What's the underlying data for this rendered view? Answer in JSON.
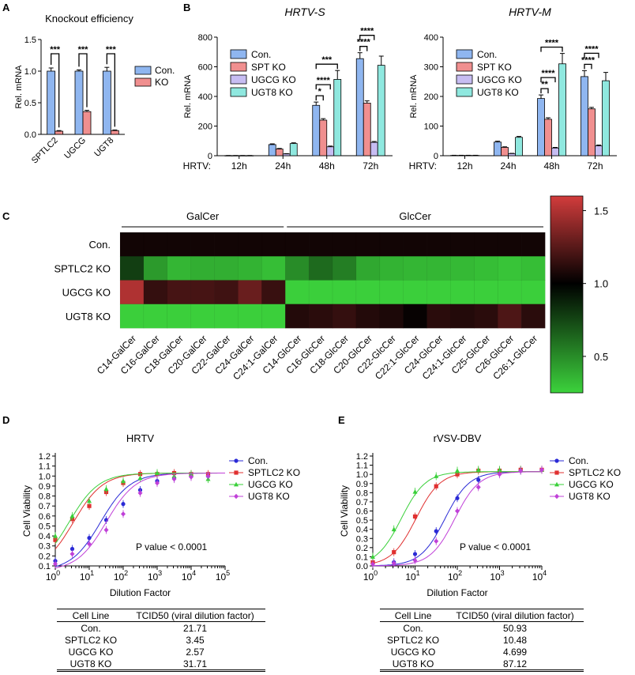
{
  "panelA": {
    "letter": "A",
    "chart_data": {
      "type": "bar",
      "title": "Knockout efficiency",
      "ylabel": "Rel. mRNA",
      "ylim": [
        0,
        1.5
      ],
      "yticks": [
        "0.0",
        "0.5",
        "1.0",
        "1.5"
      ],
      "categories": [
        "SPTLC2",
        "UGCG",
        "UGT8"
      ],
      "series": [
        {
          "name": "Con.",
          "color": "#8fb6f0",
          "values": [
            1.0,
            1.0,
            1.0
          ],
          "errors": [
            0.05,
            0.02,
            0.06
          ]
        },
        {
          "name": "KO",
          "color": "#f08f8f",
          "values": [
            0.05,
            0.36,
            0.06
          ],
          "errors": [
            0.01,
            0.02,
            0.01
          ]
        }
      ],
      "significance": [
        "***",
        "***",
        "***"
      ],
      "legend": "right"
    }
  },
  "panelB": {
    "letter": "B",
    "charts": [
      {
        "type": "bar",
        "title": "HRTV-S",
        "ylabel": "Rel. mRNA",
        "ylim": [
          0,
          800
        ],
        "yticks": [
          "0",
          "200",
          "400",
          "600",
          "800"
        ],
        "xprefix": "HRTV:",
        "categories": [
          "12h",
          "24h",
          "48h",
          "72h"
        ],
        "series": [
          {
            "name": "Con.",
            "color": "#8fb6f0",
            "values": [
              1,
              75,
              340,
              655
            ],
            "errors": [
              0.5,
              5,
              22,
              40
            ]
          },
          {
            "name": "SPT KO",
            "color": "#f08f8f",
            "values": [
              1,
              45,
              240,
              355
            ],
            "errors": [
              0.5,
              4,
              10,
              15
            ]
          },
          {
            "name": "UGCG KO",
            "color": "#c7bdf2",
            "values": [
              1,
              12,
              60,
              90
            ],
            "errors": [
              0.5,
              2,
              5,
              6
            ]
          },
          {
            "name": "UGT8 KO",
            "color": "#8fe8df",
            "values": [
              1,
              82,
              515,
              610
            ],
            "errors": [
              0.5,
              5,
              60,
              62
            ]
          }
        ],
        "brackets": [
          {
            "cat": 2,
            "from": 0,
            "to": 1,
            "label": "*"
          },
          {
            "cat": 2,
            "from": 0,
            "to": 2,
            "label": "****"
          },
          {
            "cat": 2,
            "from": 0,
            "to": 3,
            "label": "***"
          },
          {
            "cat": 3,
            "from": 0,
            "to": 1,
            "label": "****"
          },
          {
            "cat": 3,
            "from": 0,
            "to": 2,
            "label": "****"
          }
        ],
        "legend": "top-left"
      },
      {
        "type": "bar",
        "title": "HRTV-M",
        "ylabel": "Rel. mRNA",
        "ylim": [
          0,
          400
        ],
        "yticks": [
          "0",
          "100",
          "200",
          "300",
          "400"
        ],
        "xprefix": "HRTV:",
        "categories": [
          "12h",
          "24h",
          "48h",
          "72h"
        ],
        "series": [
          {
            "name": "Con.",
            "color": "#8fb6f0",
            "values": [
              1,
              46,
              193,
              267
            ],
            "errors": [
              0.5,
              3,
              12,
              20
            ]
          },
          {
            "name": "SPT KO",
            "color": "#f08f8f",
            "values": [
              1,
              28,
              123,
              158
            ],
            "errors": [
              0.5,
              2,
              5,
              5
            ]
          },
          {
            "name": "UGCG KO",
            "color": "#c7bdf2",
            "values": [
              1,
              7,
              26,
              33
            ],
            "errors": [
              0.5,
              1,
              2,
              3
            ]
          },
          {
            "name": "UGT8 KO",
            "color": "#8fe8df",
            "values": [
              1,
              62,
              310,
              253
            ],
            "errors": [
              0.5,
              3,
              35,
              28
            ]
          }
        ],
        "brackets": [
          {
            "cat": 2,
            "from": 0,
            "to": 1,
            "label": "**"
          },
          {
            "cat": 2,
            "from": 0,
            "to": 2,
            "label": "****"
          },
          {
            "cat": 2,
            "from": 0,
            "to": 3,
            "label": "****"
          },
          {
            "cat": 3,
            "from": 0,
            "to": 1,
            "label": "****"
          },
          {
            "cat": 3,
            "from": 0,
            "to": 2,
            "label": "****"
          }
        ],
        "legend": "top-left"
      }
    ]
  },
  "panelC": {
    "letter": "C",
    "chart_data": {
      "type": "heatmap",
      "rows": [
        "Con.",
        "SPTLC2 KO",
        "UGCG KO",
        "UGT8 KO"
      ],
      "columns": [
        "C14-GalCer",
        "C16-GalCer",
        "C18-GalCer",
        "C20-GalCer",
        "C22-GalCer",
        "C24-GalCer",
        "C24:1-GalCer",
        "C14-GlcCer",
        "C16-GlcCer",
        "C18-GlcCer",
        "C20-GlcCer",
        "C22-GlcCer",
        "C22:1-GlcCer",
        "C24-GlcCer",
        "C24:1-GlcCer",
        "C25-GlcCer",
        "C26-GlcCer",
        "C26:1-GlcCer"
      ],
      "groups": [
        {
          "label": "GalCer",
          "from": 0,
          "to": 6
        },
        {
          "label": "GlcCer",
          "from": 7,
          "to": 17
        }
      ],
      "values": [
        [
          1.05,
          1.05,
          1.05,
          1.05,
          1.05,
          1.05,
          1.05,
          1.05,
          1.05,
          1.05,
          1.05,
          1.05,
          1.05,
          1.05,
          1.05,
          1.05,
          1.05,
          1.05
        ],
        [
          0.78,
          0.45,
          0.35,
          0.38,
          0.38,
          0.36,
          0.32,
          0.5,
          0.62,
          0.55,
          0.4,
          0.36,
          0.35,
          0.35,
          0.34,
          0.32,
          0.3,
          0.32
        ],
        [
          1.5,
          1.15,
          1.2,
          1.2,
          1.18,
          1.3,
          1.16,
          0.26,
          0.26,
          0.26,
          0.26,
          0.26,
          0.26,
          0.26,
          0.26,
          0.26,
          0.26,
          0.26
        ],
        [
          0.26,
          0.26,
          0.26,
          0.26,
          0.26,
          0.26,
          0.26,
          1.1,
          1.12,
          1.15,
          1.1,
          1.08,
          1.02,
          1.12,
          1.1,
          1.12,
          1.22,
          1.12
        ]
      ],
      "colorbar": {
        "min": 0.25,
        "max": 1.6,
        "ticks": [
          1.5,
          1.0,
          0.5
        ],
        "tick_labels": [
          "1.5",
          "1.0",
          "0.5"
        ],
        "low_color": "#3cd23c",
        "mid_color": "#000000",
        "high_color": "#d23c3c"
      }
    }
  },
  "panelD": {
    "letter": "D",
    "chart_data": {
      "type": "scatter",
      "title": "HRTV",
      "xlabel": "Dilution Factor",
      "ylabel": "Cell Viability",
      "xscale": "log",
      "xlim": [
        1,
        100000
      ],
      "ylim": [
        0.1,
        1.2
      ],
      "yticks": [
        "0.1",
        "0.2",
        "0.3",
        "0.4",
        "0.5",
        "0.6",
        "0.7",
        "0.8",
        "0.9",
        "1.0",
        "1.1",
        "1.2"
      ],
      "xtick_base": "10",
      "xtick_exps": [
        "0",
        "1",
        "2",
        "3",
        "4",
        "5"
      ],
      "annotation": "P value < 0.0001",
      "legend": "top-right",
      "series": [
        {
          "name": "Con.",
          "color": "#2a2ad6",
          "marker": "circle",
          "tcid50": 21.71,
          "x": [
            1,
            3.16,
            10,
            31.6,
            100,
            316,
            1000,
            3162,
            10000,
            31623
          ],
          "y": [
            0.15,
            0.27,
            0.38,
            0.56,
            0.72,
            0.86,
            0.95,
            0.98,
            1.0,
            1.0
          ]
        },
        {
          "name": "SPTLC2 KO",
          "color": "#e03030",
          "marker": "square",
          "tcid50": 3.45,
          "x": [
            1,
            3.16,
            10,
            31.6,
            100,
            316,
            1000,
            3162,
            10000,
            31623
          ],
          "y": [
            0.36,
            0.57,
            0.7,
            0.84,
            0.93,
            1.02,
            1.02,
            1.03,
            1.02,
            1.02
          ]
        },
        {
          "name": "UGCG KO",
          "color": "#3ad03a",
          "marker": "triangle",
          "tcid50": 2.57,
          "x": [
            1,
            3.16,
            10,
            31.6,
            100,
            316,
            1000,
            3162,
            10000,
            31623
          ],
          "y": [
            0.4,
            0.6,
            0.75,
            0.87,
            0.95,
            0.98,
            1.03,
            1.0,
            1.02,
            0.97
          ]
        },
        {
          "name": "UGT8 KO",
          "color": "#c040d8",
          "marker": "diamond",
          "tcid50": 31.71,
          "x": [
            1,
            3.16,
            10,
            31.6,
            100,
            316,
            1000,
            3162,
            10000,
            31623
          ],
          "y": [
            0.12,
            0.22,
            0.32,
            0.46,
            0.62,
            0.83,
            0.93,
            0.97,
            0.99,
            1.0
          ]
        }
      ]
    },
    "table": {
      "headers": [
        "Cell Line",
        "TCID50 (viral dilution factor)"
      ],
      "rows": [
        [
          "Con.",
          "21.71"
        ],
        [
          "SPTLC2 KO",
          "3.45"
        ],
        [
          "UGCG KO",
          "2.57"
        ],
        [
          "UGT8 KO",
          "31.71"
        ]
      ]
    }
  },
  "panelE": {
    "letter": "E",
    "chart_data": {
      "type": "scatter",
      "title": "rVSV-DBV",
      "xlabel": "Dilution Factor",
      "ylabel": "Cell Viability",
      "xscale": "log",
      "xlim": [
        1,
        10000
      ],
      "ylim": [
        0.0,
        1.2
      ],
      "yticks": [
        "0.0",
        "0.1",
        "0.2",
        "0.3",
        "0.4",
        "0.5",
        "0.6",
        "0.7",
        "0.8",
        "0.9",
        "1.0",
        "1.1",
        "1.2"
      ],
      "xtick_base": "10",
      "xtick_exps": [
        "0",
        "1",
        "2",
        "3",
        "4"
      ],
      "annotation": "P value < 0.0001",
      "legend": "top-right",
      "series": [
        {
          "name": "Con.",
          "color": "#2a2ad6",
          "marker": "circle",
          "tcid50": 50.93,
          "x": [
            1,
            3.16,
            10,
            31.6,
            100,
            316,
            1000,
            3162,
            10000
          ],
          "y": [
            0.03,
            0.04,
            0.13,
            0.38,
            0.74,
            0.94,
            1.03,
            1.04,
            1.05
          ]
        },
        {
          "name": "SPTLC2 KO",
          "color": "#e03030",
          "marker": "square",
          "tcid50": 10.48,
          "x": [
            1,
            3.16,
            10,
            31.6,
            100,
            316,
            1000,
            3162,
            10000
          ],
          "y": [
            0.04,
            0.15,
            0.54,
            0.87,
            1.0,
            1.04,
            1.04,
            1.05,
            1.05
          ]
        },
        {
          "name": "UGCG KO",
          "color": "#3ad03a",
          "marker": "triangle",
          "tcid50": 4.699,
          "x": [
            1,
            3.16,
            10,
            31.6,
            100,
            316,
            1000,
            3162,
            10000
          ],
          "y": [
            0.1,
            0.4,
            0.81,
            0.98,
            1.04,
            1.05,
            1.05,
            1.05,
            1.05
          ]
        },
        {
          "name": "UGT8 KO",
          "color": "#c040d8",
          "marker": "diamond",
          "tcid50": 87.12,
          "x": [
            1,
            3.16,
            10,
            31.6,
            100,
            316,
            1000,
            3162,
            10000
          ],
          "y": [
            0.02,
            0.03,
            0.06,
            0.27,
            0.6,
            0.86,
            1.0,
            1.04,
            1.05
          ]
        }
      ]
    },
    "table": {
      "headers": [
        "Cell Line",
        "TCID50 (viral dilution factor)"
      ],
      "rows": [
        [
          "Con.",
          "50.93"
        ],
        [
          "SPTLC2 KO",
          "10.48"
        ],
        [
          "UGCG KO",
          "4.699"
        ],
        [
          "UGT8 KO",
          "87.12"
        ]
      ]
    }
  }
}
